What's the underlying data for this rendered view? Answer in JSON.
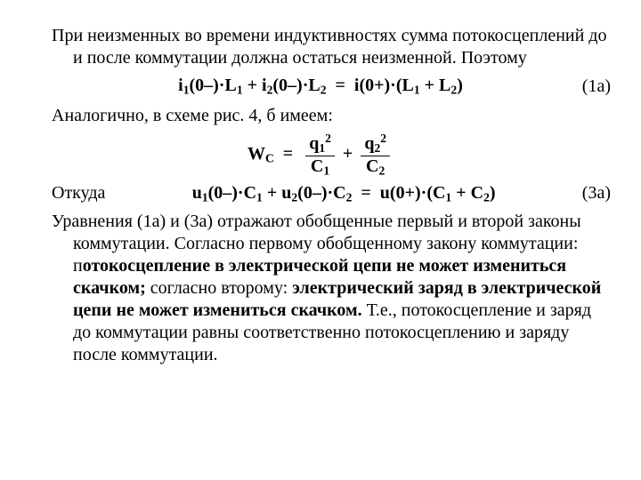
{
  "para1": "При неизменных во времени индуктивностях сумма потокосцеплений до и после коммутации должна остаться неизменной. Поэтому",
  "eq1": {
    "text": "i₁(0–)·L₁ + i₂(0–)·L₂ = i(0+)·(L₁ + L₂)",
    "label": "(1а)"
  },
  "para2": "Аналогично, в схеме рис. 4, б имеем:",
  "eq2": {
    "lhs": "W",
    "lhs_sub": "C",
    "eq": " = ",
    "frac1_num_base": "q",
    "frac1_num_sub": "1",
    "frac1_num_sup": "2",
    "frac1_den_base": "C",
    "frac1_den_sub": "1",
    "plus": " + ",
    "frac2_num_base": "q",
    "frac2_num_sub": "2",
    "frac2_num_sup": "2",
    "frac2_den_base": "C",
    "frac2_den_sub": "2"
  },
  "okuda": "Откуда",
  "eq3": {
    "text": "u₁(0–)·C₁ + u₂(0–)·C₂ = u(0+)·(C₁ + C₂)",
    "label": "(3а)"
  },
  "para3_a": "Уравнения (1а) и (3а) отражают обобщенные первый и второй законы коммутации. Согласно первому обобщенному закону коммутации: п",
  "para3_bold1": "отокосцепление в электрической цепи не может измениться скачком;",
  "para3_b": " согласно второму: ",
  "para3_bold2": "электрический заряд в электрической цепи не может измениться скачком.",
  "para3_c": " Т.е., потокосцепление и заряд до коммутации равны соответственно потокосцеплению и заряду после коммутации."
}
